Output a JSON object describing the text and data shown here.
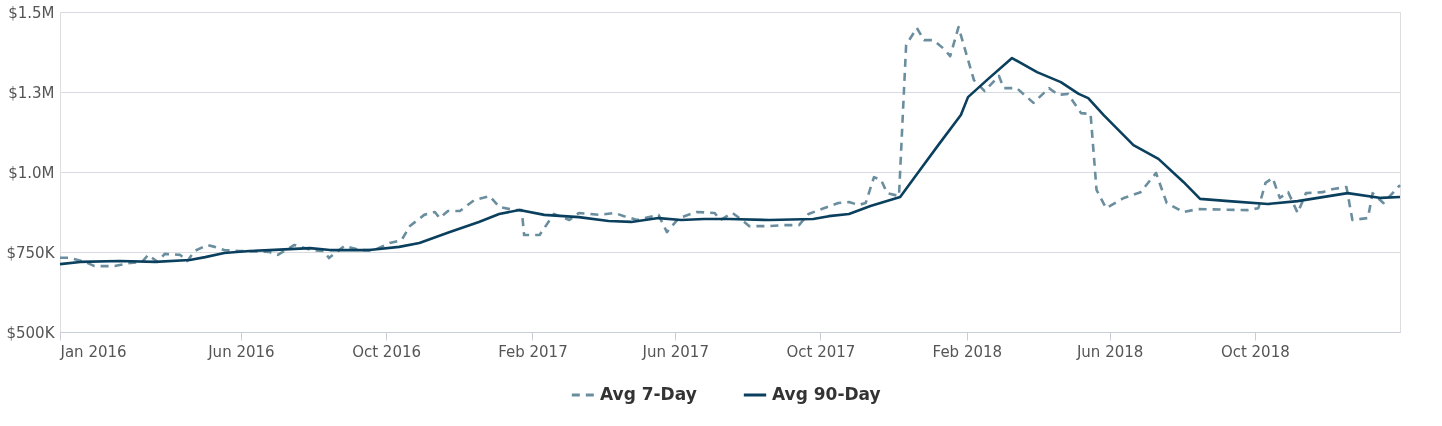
{
  "chart_data": {
    "type": "line",
    "legend": "bottom",
    "grid": "y",
    "xlim": [
      "2016-01-01",
      "2019-01-31"
    ],
    "xticks": [
      {
        "value": "2016-01-01",
        "label": "Jan 2016"
      },
      {
        "value": "2016-06-01",
        "label": "Jun 2016"
      },
      {
        "value": "2016-10-01",
        "label": "Oct 2016"
      },
      {
        "value": "2017-02-01",
        "label": "Feb 2017"
      },
      {
        "value": "2017-06-01",
        "label": "Jun 2017"
      },
      {
        "value": "2017-10-01",
        "label": "Oct 2017"
      },
      {
        "value": "2018-02-01",
        "label": "Feb 2018"
      },
      {
        "value": "2018-06-01",
        "label": "Jun 2018"
      },
      {
        "value": "2018-10-01",
        "label": "Oct 2018"
      }
    ],
    "ylim": [
      500000,
      1500000
    ],
    "yticks": [
      {
        "value": 500000,
        "label": "$500K"
      },
      {
        "value": 750000,
        "label": "$750K"
      },
      {
        "value": 1000000,
        "label": "$1.0M"
      },
      {
        "value": 1250000,
        "label": "$1.3M"
      },
      {
        "value": 1500000,
        "label": "$1.5M"
      }
    ],
    "series": [
      {
        "name": "Avg 7-Day",
        "color": "#6b8e9f",
        "line_style": "dashed",
        "x": [
          "2016-01-01",
          "2016-01-09",
          "2016-01-22",
          "2016-01-30",
          "2016-02-16",
          "2016-02-29",
          "2016-03-10",
          "2016-03-15",
          "2016-03-23",
          "2016-03-29",
          "2016-04-11",
          "2016-04-17",
          "2016-04-23",
          "2016-05-04",
          "2016-05-10",
          "2016-05-18",
          "2016-05-31",
          "2016-06-25",
          "2016-07-02",
          "2016-07-16",
          "2016-07-30",
          "2016-08-10",
          "2016-08-14",
          "2016-08-27",
          "2016-09-09",
          "2016-09-21",
          "2016-10-04",
          "2016-10-14",
          "2016-10-21",
          "2016-11-02",
          "2016-11-11",
          "2016-11-15",
          "2016-11-22",
          "2016-12-02",
          "2016-12-14",
          "2016-12-27",
          "2017-01-04",
          "2017-01-17",
          "2017-01-23",
          "2017-01-25",
          "2017-02-07",
          "2017-02-19",
          "2017-03-04",
          "2017-03-12",
          "2017-03-29",
          "2017-04-11",
          "2017-04-19",
          "2017-04-30",
          "2017-05-13",
          "2017-05-18",
          "2017-05-25",
          "2017-06-04",
          "2017-06-19",
          "2017-07-04",
          "2017-07-09",
          "2017-07-19",
          "2017-07-26",
          "2017-08-02",
          "2017-08-19",
          "2017-08-31",
          "2017-09-13",
          "2017-09-21",
          "2017-10-16",
          "2017-10-25",
          "2017-11-02",
          "2017-11-08",
          "2017-11-15",
          "2017-11-21",
          "2017-11-26",
          "2017-12-06",
          "2017-12-12",
          "2017-12-21",
          "2017-12-27",
          "2018-01-04",
          "2018-01-13",
          "2018-01-18",
          "2018-01-25",
          "2018-02-07",
          "2018-02-16",
          "2018-02-28",
          "2018-03-04",
          "2018-03-15",
          "2018-03-29",
          "2018-04-11",
          "2018-04-19",
          "2018-04-27",
          "2018-05-08",
          "2018-05-16",
          "2018-05-21",
          "2018-05-29",
          "2018-06-13",
          "2018-06-27",
          "2018-07-10",
          "2018-07-19",
          "2018-08-02",
          "2018-08-14",
          "2018-09-25",
          "2018-10-04",
          "2018-10-10",
          "2018-10-16",
          "2018-10-22",
          "2018-10-29",
          "2018-11-06",
          "2018-11-13",
          "2018-11-27",
          "2018-12-06",
          "2018-12-17",
          "2018-12-22",
          "2019-01-04",
          "2019-01-08",
          "2019-01-17",
          "2019-01-31"
        ],
        "values": [
          732000,
          732000,
          719000,
          706000,
          706000,
          716000,
          719000,
          741000,
          719000,
          744000,
          741000,
          722000,
          753000,
          772000,
          766000,
          756000,
          753000,
          750000,
          741000,
          772000,
          756000,
          753000,
          731000,
          769000,
          756000,
          756000,
          778000,
          787000,
          831000,
          866000,
          875000,
          856000,
          878000,
          878000,
          912000,
          925000,
          891000,
          881000,
          881000,
          803000,
          803000,
          869000,
          850000,
          872000,
          866000,
          872000,
          862000,
          850000,
          862000,
          866000,
          812000,
          856000,
          875000,
          872000,
          850000,
          872000,
          853000,
          831000,
          831000,
          834000,
          834000,
          869000,
          903000,
          906000,
          897000,
          903000,
          984000,
          975000,
          934000,
          925000,
          1397000,
          1450000,
          1412000,
          1412000,
          1384000,
          1362000,
          1453000,
          1287000,
          1253000,
          1300000,
          1262000,
          1262000,
          1216000,
          1262000,
          1241000,
          1244000,
          1184000,
          1181000,
          944000,
          887000,
          919000,
          937000,
          997000,
          903000,
          875000,
          884000,
          881000,
          887000,
          966000,
          981000,
          919000,
          937000,
          872000,
          934000,
          937000,
          947000,
          953000,
          850000,
          856000,
          934000,
          903000,
          959000
        ]
      },
      {
        "name": "Avg 90-Day",
        "color": "#0b3f5e",
        "line_style": "solid",
        "x": [
          "2016-01-01",
          "2016-01-18",
          "2016-02-20",
          "2016-03-21",
          "2016-04-19",
          "2016-05-02",
          "2016-05-18",
          "2016-06-08",
          "2016-06-25",
          "2016-07-29",
          "2016-08-15",
          "2016-09-17",
          "2016-10-12",
          "2016-10-29",
          "2016-11-23",
          "2016-12-18",
          "2017-01-04",
          "2017-01-21",
          "2017-02-11",
          "2017-03-12",
          "2017-04-06",
          "2017-04-25",
          "2017-05-18",
          "2017-06-06",
          "2017-06-25",
          "2017-07-16",
          "2017-08-19",
          "2017-09-25",
          "2017-10-08",
          "2017-10-25",
          "2017-11-12",
          "2017-12-07",
          "2017-12-23",
          "2018-01-08",
          "2018-01-27",
          "2018-02-02",
          "2018-02-19",
          "2018-03-11",
          "2018-04-01",
          "2018-04-21",
          "2018-05-06",
          "2018-05-14",
          "2018-05-27",
          "2018-06-21",
          "2018-07-12",
          "2018-08-02",
          "2018-08-16",
          "2018-09-09",
          "2018-10-12",
          "2018-11-06",
          "2018-12-18",
          "2019-01-15",
          "2019-01-31"
        ],
        "values": [
          712000,
          719000,
          722000,
          719000,
          725000,
          734000,
          747000,
          753000,
          756000,
          762000,
          756000,
          756000,
          766000,
          778000,
          812000,
          844000,
          869000,
          881000,
          866000,
          859000,
          847000,
          844000,
          856000,
          850000,
          853000,
          853000,
          850000,
          853000,
          862000,
          869000,
          894000,
          922000,
          1003000,
          1084000,
          1178000,
          1234000,
          1291000,
          1356000,
          1312000,
          1281000,
          1244000,
          1231000,
          1178000,
          1084000,
          1041000,
          969000,
          916000,
          909000,
          900000,
          909000,
          934000,
          919000,
          922000
        ]
      }
    ]
  }
}
